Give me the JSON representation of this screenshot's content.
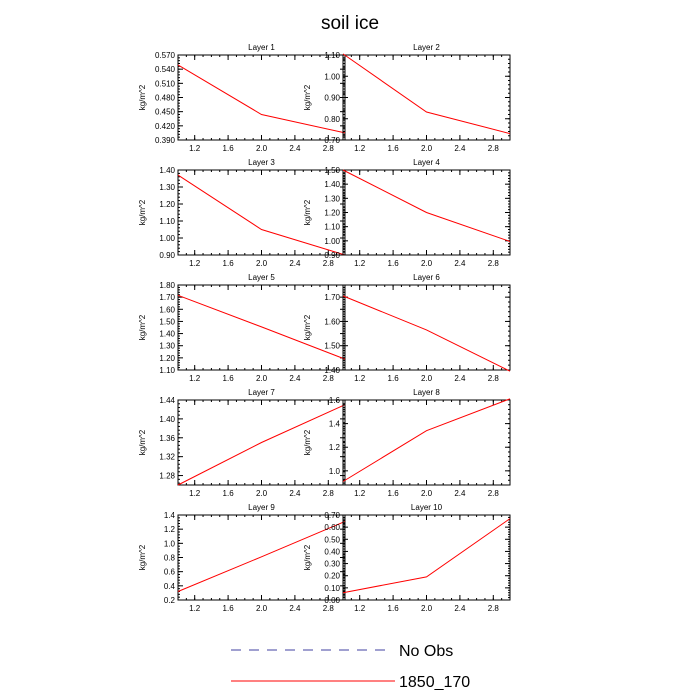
{
  "title": "soil ice",
  "colors": {
    "series": "#ff0000",
    "obs": "#4040a0",
    "axis": "#000000"
  },
  "legend": [
    {
      "label": "No Obs",
      "style": "dashed"
    },
    {
      "label": "1850_170",
      "style": "solid"
    }
  ],
  "chart_data": [
    {
      "type": "line",
      "title": "Layer 1",
      "ylabel": "kg/m^2",
      "xlim": [
        1.0,
        3.0
      ],
      "ylim": [
        0.39,
        0.57
      ],
      "xticks": [
        "1.2",
        "1.6",
        "2.0",
        "2.4",
        "2.8"
      ],
      "yticks": [
        "0.390",
        "0.420",
        "0.450",
        "0.480",
        "0.510",
        "0.540",
        "0.570"
      ],
      "series": [
        {
          "name": "1850_170",
          "x": [
            1,
            2,
            3
          ],
          "y": [
            0.549,
            0.444,
            0.405
          ]
        }
      ]
    },
    {
      "type": "line",
      "title": "Layer 2",
      "ylabel": "kg/m^2",
      "xlim": [
        1.0,
        3.0
      ],
      "ylim": [
        0.7,
        1.1
      ],
      "xticks": [
        "1.2",
        "1.6",
        "2.0",
        "2.4",
        "2.8"
      ],
      "yticks": [
        "0.70",
        "0.80",
        "0.90",
        "1.00",
        "1.10"
      ],
      "series": [
        {
          "name": "1850_170",
          "x": [
            1,
            2,
            3
          ],
          "y": [
            1.105,
            0.832,
            0.73
          ]
        }
      ]
    },
    {
      "type": "line",
      "title": "Layer 3",
      "ylabel": "kg/m^2",
      "xlim": [
        1.0,
        3.0
      ],
      "ylim": [
        0.9,
        1.4
      ],
      "xticks": [
        "1.2",
        "1.6",
        "2.0",
        "2.4",
        "2.8"
      ],
      "yticks": [
        "0.90",
        "1.00",
        "1.10",
        "1.20",
        "1.30",
        "1.40"
      ],
      "series": [
        {
          "name": "1850_170",
          "x": [
            1,
            2,
            3
          ],
          "y": [
            1.37,
            1.05,
            0.9
          ]
        }
      ]
    },
    {
      "type": "line",
      "title": "Layer 4",
      "ylabel": "kg/m^2",
      "xlim": [
        1.0,
        3.0
      ],
      "ylim": [
        0.9,
        1.5
      ],
      "xticks": [
        "1.2",
        "1.6",
        "2.0",
        "2.4",
        "2.8"
      ],
      "yticks": [
        "0.90",
        "1.00",
        "1.10",
        "1.20",
        "1.30",
        "1.40",
        "1.50"
      ],
      "series": [
        {
          "name": "1850_170",
          "x": [
            1,
            2,
            3
          ],
          "y": [
            1.5,
            1.2,
            0.995
          ]
        }
      ]
    },
    {
      "type": "line",
      "title": "Layer 5",
      "ylabel": "kg/m^2",
      "xlim": [
        1.0,
        3.0
      ],
      "ylim": [
        1.1,
        1.8
      ],
      "xticks": [
        "1.2",
        "1.6",
        "2.0",
        "2.4",
        "2.8"
      ],
      "yticks": [
        "1.10",
        "1.20",
        "1.30",
        "1.40",
        "1.50",
        "1.60",
        "1.70",
        "1.80"
      ],
      "series": [
        {
          "name": "1850_170",
          "x": [
            1,
            2,
            3
          ],
          "y": [
            1.715,
            1.455,
            1.19
          ]
        }
      ]
    },
    {
      "type": "line",
      "title": "Layer 6",
      "ylabel": "kg/m^2",
      "xlim": [
        1.0,
        3.0
      ],
      "ylim": [
        1.4,
        1.75
      ],
      "xticks": [
        "1.2",
        "1.6",
        "2.0",
        "2.4",
        "2.8"
      ],
      "yticks": [
        "1.40",
        "1.50",
        "1.60",
        "1.70"
      ],
      "series": [
        {
          "name": "1850_170",
          "x": [
            1,
            2,
            3
          ],
          "y": [
            1.705,
            1.565,
            1.395
          ]
        }
      ]
    },
    {
      "type": "line",
      "title": "Layer 7",
      "ylabel": "kg/m^2",
      "xlim": [
        1.0,
        3.0
      ],
      "ylim": [
        1.26,
        1.44
      ],
      "xticks": [
        "1.2",
        "1.6",
        "2.0",
        "2.4",
        "2.8"
      ],
      "yticks": [
        "1.28",
        "1.32",
        "1.36",
        "1.40",
        "1.44"
      ],
      "series": [
        {
          "name": "1850_170",
          "x": [
            1,
            2,
            3
          ],
          "y": [
            1.26,
            1.35,
            1.43
          ]
        }
      ]
    },
    {
      "type": "line",
      "title": "Layer 8",
      "ylabel": "kg/m^2",
      "xlim": [
        1.0,
        3.0
      ],
      "ylim": [
        0.88,
        1.6
      ],
      "xticks": [
        "1.2",
        "1.6",
        "2.0",
        "2.4",
        "2.8"
      ],
      "yticks": [
        "1.0",
        "1.2",
        "1.4",
        "1.6"
      ],
      "series": [
        {
          "name": "1850_170",
          "x": [
            1,
            2,
            3
          ],
          "y": [
            0.91,
            1.34,
            1.61
          ]
        }
      ]
    },
    {
      "type": "line",
      "title": "Layer 9",
      "ylabel": "kg/m^2",
      "xlim": [
        1.0,
        3.0
      ],
      "ylim": [
        0.2,
        1.4
      ],
      "xticks": [
        "1.2",
        "1.6",
        "2.0",
        "2.4",
        "2.8"
      ],
      "yticks": [
        "0.2",
        "0.4",
        "0.6",
        "0.8",
        "1.0",
        "1.2",
        "1.4"
      ],
      "series": [
        {
          "name": "1850_170",
          "x": [
            1,
            2,
            3
          ],
          "y": [
            0.32,
            0.81,
            1.31
          ]
        }
      ]
    },
    {
      "type": "line",
      "title": "Layer 10",
      "ylabel": "kg/m^2",
      "xlim": [
        1.0,
        3.0
      ],
      "ylim": [
        0.0,
        0.7
      ],
      "xticks": [
        "1.2",
        "1.6",
        "2.0",
        "2.4",
        "2.8"
      ],
      "yticks": [
        "0.00",
        "0.10",
        "0.20",
        "0.30",
        "0.40",
        "0.50",
        "0.60",
        "0.70"
      ],
      "series": [
        {
          "name": "1850_170",
          "x": [
            1,
            2,
            3
          ],
          "y": [
            0.06,
            0.19,
            0.67
          ]
        }
      ]
    }
  ]
}
